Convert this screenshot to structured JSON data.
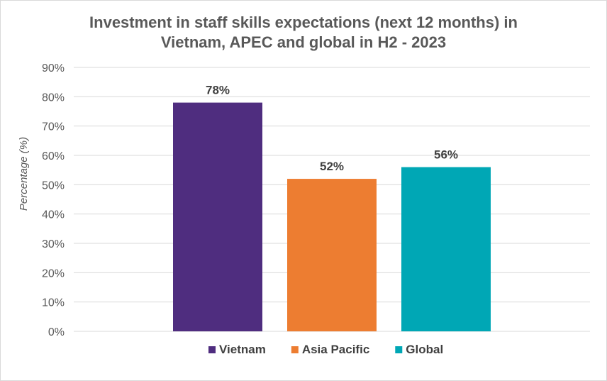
{
  "chart_data": {
    "type": "bar",
    "title_lines": [
      "Investment in staff skills expectations (next 12 months) in",
      "Vietnam, APEC and global in H2 - 2023"
    ],
    "xlabel": "",
    "ylabel": "Percentage (%)",
    "ylim": [
      0,
      90
    ],
    "y_ticks": [
      "0%",
      "10%",
      "20%",
      "30%",
      "40%",
      "50%",
      "60%",
      "70%",
      "80%",
      "90%"
    ],
    "grid": true,
    "legend_position": "bottom",
    "series": [
      {
        "name": "Vietnam",
        "value": 78,
        "label": "78%",
        "color": "#4f2d7f"
      },
      {
        "name": "Asia Pacific",
        "value": 52,
        "label": "52%",
        "color": "#ed7d31"
      },
      {
        "name": "Global",
        "value": 56,
        "label": "56%",
        "color": "#00a7b5"
      }
    ]
  }
}
